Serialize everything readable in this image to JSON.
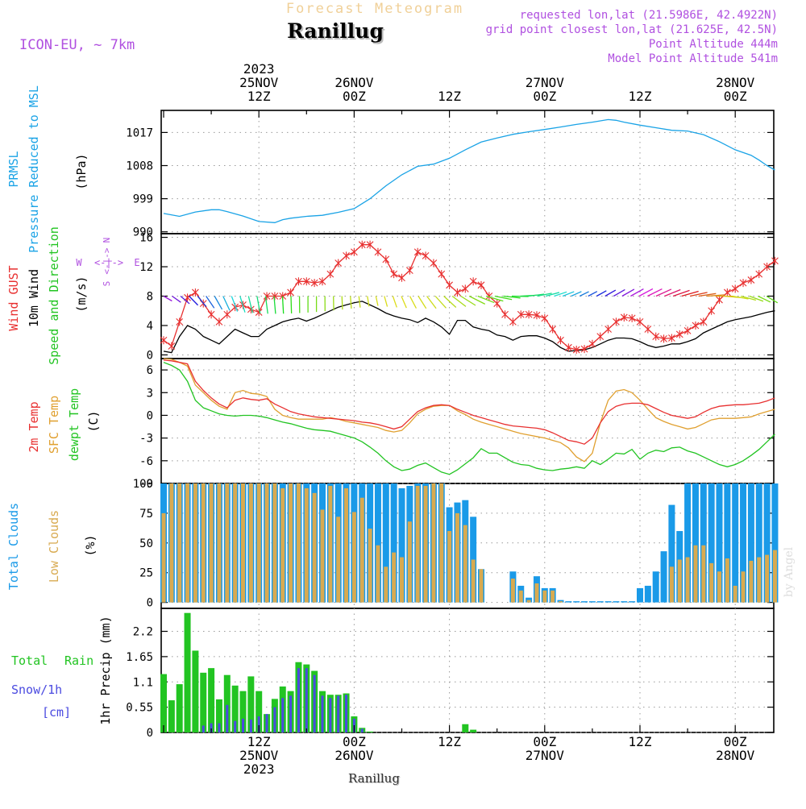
{
  "header": {
    "product": "Forecast Meteogram",
    "location": "Ranillug",
    "model": "ICON-EU, ~ 7km",
    "requested": "requested lon,lat (21.5986E, 42.4922N)",
    "gridpoint": "grid point closest lon,lat (21.625E, 42.5N)",
    "altitude": "Point Altitude 444m",
    "model_altitude": "Model Point Altitude 541m",
    "footer_location": "Ranillug",
    "watermark": "by Angel"
  },
  "time_axis": {
    "top_ticks": [
      {
        "hour": 12,
        "line1": "2023",
        "line2": "25NOV",
        "line3": "12Z"
      },
      {
        "hour": 24,
        "line2": "26NOV",
        "line3": "00Z"
      },
      {
        "hour": 36,
        "line3": "12Z"
      },
      {
        "hour": 48,
        "line2": "27NOV",
        "line3": "00Z"
      },
      {
        "hour": 60,
        "line3": "12Z"
      },
      {
        "hour": 72,
        "line2": "28NOV",
        "line3": "00Z"
      }
    ],
    "bottom_ticks": [
      {
        "hour": 12,
        "line1": "12Z",
        "line2": "25NOV",
        "line3": "2023"
      },
      {
        "hour": 24,
        "line1": "00Z",
        "line2": "26NOV"
      },
      {
        "hour": 36,
        "line1": "12Z"
      },
      {
        "hour": 48,
        "line1": "00Z",
        "line2": "27NOV"
      },
      {
        "hour": 60,
        "line1": "12Z"
      },
      {
        "hour": 72,
        "line1": "00Z",
        "line2": "28NOV"
      }
    ],
    "hour_range": [
      0,
      77
    ]
  },
  "colors": {
    "pressure": "#1aa3e6",
    "gust": "#e83030",
    "wind": "#000000",
    "dir_label": "#22c422",
    "temp": "#e83030",
    "sfc": "#e0a030",
    "dew": "#22c422",
    "clouds_total": "#1a9ae8",
    "clouds_low": "#d8aa50",
    "rain": "#22c422",
    "snow": "#4a4ae0",
    "violet": "#b050e0"
  },
  "chart_data": [
    {
      "id": "pressure",
      "type": "line",
      "title": "PRMSL Pressure Reduced to MSL",
      "label_line1": "PRMSL",
      "label_line2": "Pressure Reduced to MSL",
      "ylabel": "(hPa)",
      "yticks": [
        "990",
        "999",
        "1008",
        "1017"
      ],
      "ylim": [
        989.5,
        1023
      ],
      "x": [
        0,
        2,
        4,
        6,
        7,
        8,
        10,
        12,
        14,
        15,
        16,
        18,
        20,
        22,
        24,
        26,
        28,
        30,
        32,
        34,
        36,
        38,
        40,
        42,
        44,
        46,
        48,
        50,
        52,
        54,
        56,
        57,
        58,
        60,
        62,
        64,
        66,
        68,
        70,
        72,
        74,
        75,
        76,
        77
      ],
      "values": [
        995,
        994.2,
        995.4,
        996,
        996,
        995.5,
        994.3,
        992.8,
        992.5,
        993.3,
        993.7,
        994.2,
        994.5,
        995.3,
        996.3,
        999,
        1002.5,
        1005.5,
        1007.8,
        1008.4,
        1010,
        1012.3,
        1014.4,
        1015.5,
        1016.5,
        1017.2,
        1017.8,
        1018.5,
        1019.2,
        1019.8,
        1020.5,
        1020.3,
        1019.8,
        1019,
        1018.3,
        1017.6,
        1017.4,
        1016.4,
        1014.5,
        1012.3,
        1010.8,
        1009.5,
        1008,
        1006.8
      ]
    },
    {
      "id": "wind",
      "type": "line",
      "title": "Wind GUST 10m Wind Speed and Direction",
      "label_gust": "Wind GUST",
      "label_wind": "10m Wind",
      "label_dir": "Speed and Direction",
      "ylabel": "(m/s)",
      "compass": [
        "W",
        "<-|->",
        "E",
        "N",
        "S"
      ],
      "yticks": [
        "0",
        "4",
        "8",
        "12",
        "16"
      ],
      "ylim": [
        -0.5,
        16.5
      ],
      "x": [
        0,
        1,
        2,
        3,
        4,
        5,
        6,
        7,
        8,
        9,
        10,
        11,
        12,
        13,
        14,
        15,
        16,
        17,
        18,
        19,
        20,
        21,
        22,
        23,
        24,
        25,
        26,
        27,
        28,
        29,
        30,
        31,
        32,
        33,
        34,
        35,
        36,
        37,
        38,
        39,
        40,
        41,
        42,
        43,
        44,
        45,
        46,
        47,
        48,
        49,
        50,
        51,
        52,
        53,
        54,
        55,
        56,
        57,
        58,
        59,
        60,
        61,
        62,
        63,
        64,
        65,
        66,
        67,
        68,
        69,
        70,
        71,
        72,
        73,
        74,
        75,
        76,
        77
      ],
      "gust": [
        2,
        1.2,
        4.5,
        7.8,
        8.5,
        7,
        5.5,
        4.5,
        5.5,
        6.5,
        6.8,
        6.2,
        5.8,
        8,
        8,
        8,
        8.5,
        10,
        10,
        9.8,
        10,
        11,
        12.5,
        13.5,
        14,
        15,
        15,
        14,
        13,
        11,
        10.5,
        11.5,
        14,
        13.5,
        12.5,
        11,
        9.5,
        8.5,
        9,
        10,
        9.5,
        8,
        7,
        5.5,
        4.5,
        5.5,
        5.5,
        5.4,
        5,
        3.5,
        2,
        1,
        0.7,
        0.8,
        1.5,
        2.5,
        3.5,
        4.5,
        5.1,
        5,
        4.5,
        3.5,
        2.5,
        2.2,
        2.3,
        2.8,
        3.3,
        4,
        4.5,
        6,
        7.5,
        8.5,
        9,
        9.8,
        10.2,
        11,
        12,
        12.8
      ],
      "speed": [
        0.5,
        0.3,
        2.5,
        4,
        3.5,
        2.5,
        2,
        1.5,
        2.5,
        3.5,
        3,
        2.5,
        2.5,
        3.5,
        4,
        4.5,
        4.8,
        5,
        4.6,
        5,
        5.5,
        6,
        6.5,
        6.8,
        7.1,
        7.3,
        6.8,
        6.3,
        5.7,
        5.3,
        5,
        4.8,
        4.4,
        5,
        4.5,
        3.8,
        2.8,
        4.7,
        4.7,
        3.8,
        3.5,
        3.3,
        2.7,
        2.5,
        2,
        2.5,
        2.6,
        2.6,
        2.3,
        1.8,
        1,
        0.5,
        0.6,
        0.7,
        1,
        1.5,
        2,
        2.3,
        2.3,
        2.2,
        1.8,
        1.3,
        1,
        1.2,
        1.5,
        1.5,
        1.8,
        2.2,
        3,
        3.5,
        4,
        4.5,
        4.8,
        5,
        5.2,
        5.5,
        5.8,
        6
      ]
    },
    {
      "id": "temperature",
      "type": "line",
      "title": "2m Temp SFC Temp dewpt Temp",
      "label_t2m": "2m Temp",
      "label_sfc": "SFC Temp",
      "label_dew": "dewpt Temp",
      "ylabel": "(C)",
      "yticks": [
        "-9",
        "-6",
        "-3",
        "0",
        "3",
        "6"
      ],
      "ylim": [
        -9,
        7.5
      ],
      "x": [
        0,
        1,
        2,
        3,
        4,
        5,
        6,
        7,
        8,
        9,
        10,
        11,
        12,
        13,
        14,
        15,
        16,
        17,
        18,
        19,
        20,
        21,
        22,
        23,
        24,
        25,
        26,
        27,
        28,
        29,
        30,
        31,
        32,
        33,
        34,
        35,
        36,
        37,
        38,
        39,
        40,
        41,
        42,
        43,
        44,
        45,
        46,
        47,
        48,
        49,
        50,
        51,
        52,
        53,
        54,
        55,
        56,
        57,
        58,
        59,
        60,
        61,
        62,
        63,
        64,
        65,
        66,
        67,
        68,
        69,
        70,
        71,
        72,
        73,
        74,
        75,
        76,
        77
      ],
      "t2m": [
        7.3,
        7.2,
        7,
        6.8,
        4.5,
        3.3,
        2.3,
        1.5,
        1,
        2,
        2.3,
        2.1,
        2,
        2.2,
        1.5,
        1,
        0.5,
        0.2,
        0,
        -0.2,
        -0.3,
        -0.4,
        -0.5,
        -0.6,
        -0.7,
        -0.9,
        -1,
        -1.2,
        -1.5,
        -1.8,
        -1.5,
        -0.5,
        0.5,
        1,
        1.3,
        1.4,
        1.3,
        0.8,
        0.4,
        0,
        -0.3,
        -0.6,
        -0.9,
        -1.2,
        -1.4,
        -1.5,
        -1.6,
        -1.7,
        -1.9,
        -2.3,
        -2.8,
        -3.3,
        -3.5,
        -3.8,
        -3,
        -1,
        0.5,
        1.2,
        1.5,
        1.6,
        1.6,
        1.4,
        0.9,
        0.4,
        0,
        -0.2,
        -0.4,
        -0.2,
        0.4,
        0.9,
        1.2,
        1.3,
        1.4,
        1.4,
        1.5,
        1.6,
        1.9,
        2.3
      ],
      "sfc": [
        7.5,
        7.4,
        7,
        6.5,
        4,
        3,
        2,
        1.2,
        0.8,
        3,
        3.3,
        2.9,
        2.8,
        2.5,
        0.8,
        0,
        -0.3,
        -0.5,
        -0.5,
        -0.5,
        -0.5,
        -0.3,
        -0.5,
        -0.8,
        -1,
        -1.2,
        -1.4,
        -1.6,
        -2,
        -2.2,
        -2,
        -1,
        0.2,
        0.8,
        1.2,
        1.3,
        1.3,
        0.6,
        0.1,
        -0.5,
        -0.9,
        -1.2,
        -1.5,
        -1.8,
        -2.1,
        -2.4,
        -2.6,
        -2.8,
        -3,
        -3.3,
        -3.6,
        -4.3,
        -5.5,
        -6.1,
        -5,
        -1,
        2,
        3.2,
        3.4,
        3,
        2,
        0.8,
        -0.3,
        -0.8,
        -1.2,
        -1.5,
        -1.8,
        -1.6,
        -1.1,
        -0.6,
        -0.4,
        -0.4,
        -0.4,
        -0.3,
        -0.2,
        0.2,
        0.5,
        0.8
      ],
      "dew": [
        7,
        6.6,
        6,
        4.5,
        2,
        1,
        0.6,
        0.2,
        0,
        -0.1,
        0,
        0,
        -0.1,
        -0.3,
        -0.6,
        -0.9,
        -1.1,
        -1.4,
        -1.7,
        -1.9,
        -2,
        -2.1,
        -2.4,
        -2.7,
        -3,
        -3.5,
        -4.2,
        -5,
        -6,
        -6.8,
        -7.3,
        -7.1,
        -6.6,
        -6.3,
        -6.9,
        -7.5,
        -7.8,
        -7.2,
        -6.4,
        -5.6,
        -4.4,
        -5,
        -5,
        -5.6,
        -6.2,
        -6.5,
        -6.6,
        -7,
        -7.2,
        -7.3,
        -7.1,
        -7,
        -6.8,
        -7,
        -6,
        -6.5,
        -5.8,
        -5,
        -5.1,
        -4.5,
        -5.8,
        -5,
        -4.6,
        -4.8,
        -4.3,
        -4.2,
        -4.7,
        -5,
        -5.5,
        -6,
        -6.5,
        -6.8,
        -6.5,
        -6,
        -5.3,
        -4.5,
        -3.5,
        -2.5
      ]
    },
    {
      "id": "clouds",
      "type": "bar",
      "title": "Total Clouds Low Clouds",
      "label_total": "Total Clouds",
      "label_low": "Low Clouds",
      "ylabel": "(%)",
      "yticks": [
        "0",
        "25",
        "50",
        "75",
        "100"
      ],
      "ylim": [
        -5,
        100
      ],
      "x": [
        0,
        1,
        2,
        3,
        4,
        5,
        6,
        7,
        8,
        9,
        10,
        11,
        12,
        13,
        14,
        15,
        16,
        17,
        18,
        19,
        20,
        21,
        22,
        23,
        24,
        25,
        26,
        27,
        28,
        29,
        30,
        31,
        32,
        33,
        34,
        35,
        36,
        37,
        38,
        39,
        40,
        41,
        42,
        43,
        44,
        45,
        46,
        47,
        48,
        49,
        50,
        51,
        52,
        53,
        54,
        55,
        56,
        57,
        58,
        59,
        60,
        61,
        62,
        63,
        64,
        65,
        66,
        67,
        68,
        69,
        70,
        71,
        72,
        73,
        74,
        75,
        76,
        77
      ],
      "total": [
        100,
        100,
        100,
        100,
        100,
        100,
        100,
        100,
        100,
        100,
        100,
        100,
        100,
        100,
        100,
        100,
        100,
        100,
        100,
        100,
        100,
        100,
        100,
        100,
        100,
        100,
        100,
        100,
        100,
        100,
        96,
        98,
        100,
        100,
        100,
        100,
        80,
        84,
        86,
        72,
        28,
        0,
        0,
        0,
        26,
        14,
        4,
        22,
        12,
        12,
        2,
        1,
        1,
        1,
        1,
        1,
        1,
        1,
        1,
        1,
        12,
        14,
        26,
        43,
        82,
        60,
        100,
        100,
        100,
        100,
        100,
        100,
        100,
        100,
        100,
        100,
        100,
        100
      ],
      "low": [
        75,
        100,
        100,
        100,
        100,
        100,
        100,
        100,
        100,
        100,
        100,
        100,
        100,
        100,
        100,
        96,
        100,
        100,
        96,
        92,
        78,
        98,
        72,
        96,
        76,
        88,
        62,
        48,
        30,
        42,
        38,
        68,
        98,
        98,
        100,
        100,
        60,
        75,
        65,
        36,
        28,
        0,
        0,
        0,
        20,
        10,
        2,
        16,
        10,
        10,
        1,
        0,
        0,
        0,
        0,
        0,
        0,
        0,
        0,
        0,
        0,
        0,
        0,
        0,
        30,
        36,
        38,
        48,
        48,
        33,
        26,
        37,
        14,
        26,
        35,
        38,
        40,
        44
      ]
    },
    {
      "id": "precip",
      "type": "bar",
      "title": "Total Rain Snow/1h 1hr Precip",
      "label_total": "Total",
      "label_rain": "Rain",
      "label_snow": "Snow/1h",
      "label_cm": "[cm]",
      "ylabel": "1hr Precip (mm)",
      "yticks": [
        "0",
        "0.55",
        "1.1",
        "1.65",
        "2.2"
      ],
      "ylim": [
        0,
        2.7
      ],
      "x": [
        0,
        1,
        2,
        3,
        4,
        5,
        6,
        7,
        8,
        9,
        10,
        11,
        12,
        13,
        14,
        15,
        16,
        17,
        18,
        19,
        20,
        21,
        22,
        23,
        24,
        25,
        26,
        27,
        28,
        29,
        30,
        31,
        32,
        33,
        34,
        35,
        36,
        37,
        38,
        39,
        40,
        41,
        42,
        43,
        44,
        45,
        46,
        47,
        48,
        49,
        50,
        51,
        52,
        53,
        54,
        55,
        56,
        57,
        58,
        59,
        60,
        61,
        62,
        63,
        64,
        65,
        66,
        67,
        68,
        69,
        70,
        71,
        72,
        73,
        74,
        75,
        76,
        77
      ],
      "rain": [
        1.27,
        0.7,
        1.05,
        2.6,
        1.78,
        1.3,
        1.4,
        0.72,
        1.25,
        1.02,
        0.9,
        1.22,
        0.9,
        0.4,
        0.73,
        1,
        0.9,
        1.53,
        1.48,
        1.34,
        0.9,
        0.82,
        0.82,
        0.85,
        0.35,
        0.1,
        0.02,
        0,
        0,
        0,
        0,
        0,
        0,
        0,
        0,
        0,
        0,
        0,
        0.18,
        0.06,
        0,
        0,
        0,
        0,
        0,
        0,
        0,
        0,
        0,
        0,
        0,
        0,
        0,
        0,
        0,
        0,
        0,
        0,
        0,
        0,
        0,
        0,
        0,
        0,
        0,
        0,
        0,
        0,
        0,
        0,
        0,
        0,
        0,
        0,
        0,
        0,
        0,
        0
      ],
      "snow": [
        0,
        0,
        0,
        0,
        0,
        0.15,
        0.2,
        0.2,
        0.6,
        0.25,
        0.3,
        0.28,
        0.35,
        0.4,
        0.55,
        0.75,
        0.8,
        1.4,
        1.4,
        1.25,
        0.8,
        0.75,
        0.8,
        0.82,
        0.3,
        0.08,
        0,
        0,
        0,
        0,
        0,
        0,
        0,
        0,
        0,
        0,
        0,
        0,
        0,
        0,
        0,
        0,
        0,
        0,
        0,
        0,
        0,
        0,
        0,
        0,
        0,
        0,
        0,
        0,
        0,
        0,
        0,
        0,
        0,
        0,
        0,
        0,
        0,
        0,
        0,
        0,
        0,
        0,
        0,
        0,
        0,
        0,
        0,
        0,
        0,
        0,
        0,
        0
      ]
    }
  ]
}
